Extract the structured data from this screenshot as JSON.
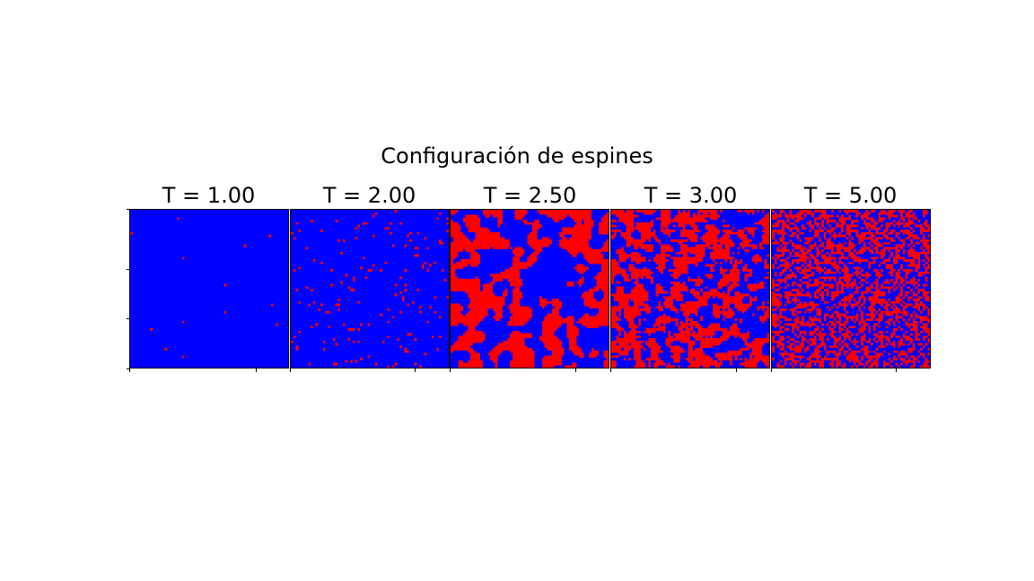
{
  "chart_data": {
    "type": "heatmap",
    "title": "Configuración de espines",
    "colors": {
      "spin_up": "#ff0000",
      "spin_down": "#0000ff"
    },
    "grid": false,
    "panels": [
      {
        "title": "T = 1.00",
        "temperature": 1.0,
        "red_fraction": 0.003
      },
      {
        "title": "T = 2.00",
        "temperature": 2.0,
        "red_fraction": 0.04
      },
      {
        "title": "T = 2.50",
        "temperature": 2.5,
        "red_fraction": 0.48
      },
      {
        "title": "T = 3.00",
        "temperature": 3.0,
        "red_fraction": 0.52
      },
      {
        "title": "T = 5.00",
        "temperature": 5.0,
        "red_fraction": 0.5
      }
    ]
  }
}
